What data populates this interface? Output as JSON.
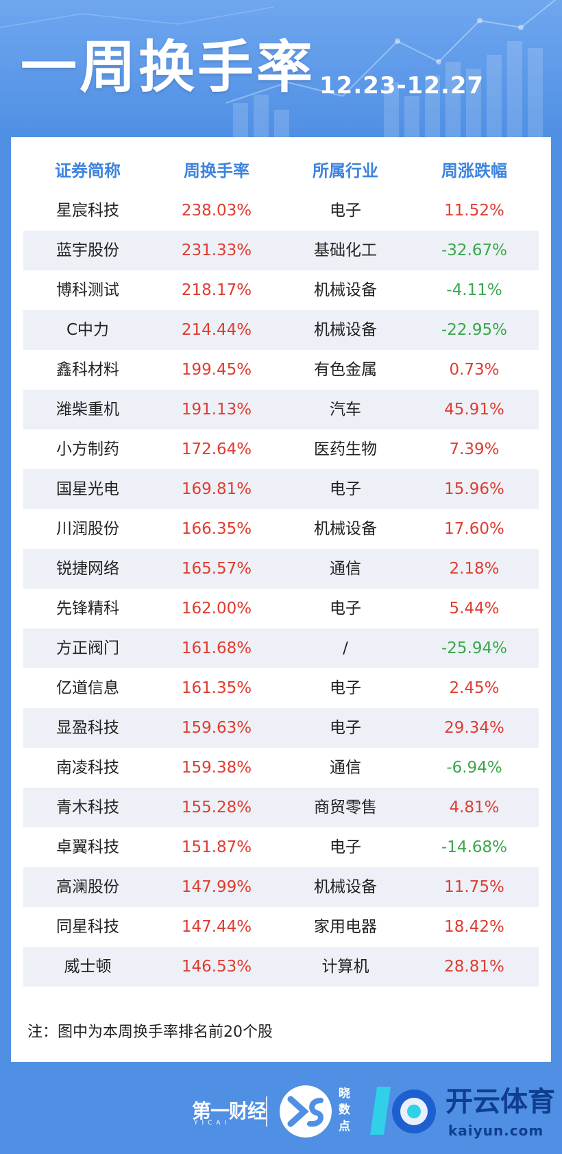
{
  "header": {
    "title": "一周换手率",
    "date_range": "12.23-12.27"
  },
  "table": {
    "columns": [
      "证券简称",
      "周换手率",
      "所属行业",
      "周涨跌幅"
    ],
    "rows": [
      {
        "name": "星宸科技",
        "rate": "238.03%",
        "industry": "电子",
        "change": "11.52%",
        "dir": "up"
      },
      {
        "name": "蓝宇股份",
        "rate": "231.33%",
        "industry": "基础化工",
        "change": "-32.67%",
        "dir": "down"
      },
      {
        "name": "博科测试",
        "rate": "218.17%",
        "industry": "机械设备",
        "change": "-4.11%",
        "dir": "down"
      },
      {
        "name": "C中力",
        "rate": "214.44%",
        "industry": "机械设备",
        "change": "-22.95%",
        "dir": "down"
      },
      {
        "name": "鑫科材料",
        "rate": "199.45%",
        "industry": "有色金属",
        "change": "0.73%",
        "dir": "up"
      },
      {
        "name": "潍柴重机",
        "rate": "191.13%",
        "industry": "汽车",
        "change": "45.91%",
        "dir": "up"
      },
      {
        "name": "小方制药",
        "rate": "172.64%",
        "industry": "医药生物",
        "change": "7.39%",
        "dir": "up"
      },
      {
        "name": "国星光电",
        "rate": "169.81%",
        "industry": "电子",
        "change": "15.96%",
        "dir": "up"
      },
      {
        "name": "川润股份",
        "rate": "166.35%",
        "industry": "机械设备",
        "change": "17.60%",
        "dir": "up"
      },
      {
        "name": "锐捷网络",
        "rate": "165.57%",
        "industry": "通信",
        "change": "2.18%",
        "dir": "up"
      },
      {
        "name": "先锋精科",
        "rate": "162.00%",
        "industry": "电子",
        "change": "5.44%",
        "dir": "up"
      },
      {
        "name": "方正阀门",
        "rate": "161.68%",
        "industry": "/",
        "change": "-25.94%",
        "dir": "down"
      },
      {
        "name": "亿道信息",
        "rate": "161.35%",
        "industry": "电子",
        "change": "2.45%",
        "dir": "up"
      },
      {
        "name": "显盈科技",
        "rate": "159.63%",
        "industry": "电子",
        "change": "29.34%",
        "dir": "up"
      },
      {
        "name": "南凌科技",
        "rate": "159.38%",
        "industry": "通信",
        "change": "-6.94%",
        "dir": "down"
      },
      {
        "name": "青木科技",
        "rate": "155.28%",
        "industry": "商贸零售",
        "change": "4.81%",
        "dir": "up"
      },
      {
        "name": "卓翼科技",
        "rate": "151.87%",
        "industry": "电子",
        "change": "-14.68%",
        "dir": "down"
      },
      {
        "name": "高澜股份",
        "rate": "147.99%",
        "industry": "机械设备",
        "change": "11.75%",
        "dir": "up"
      },
      {
        "name": "同星科技",
        "rate": "147.44%",
        "industry": "家用电器",
        "change": "18.42%",
        "dir": "up"
      },
      {
        "name": "威士顿",
        "rate": "146.53%",
        "industry": "计算机",
        "change": "28.81%",
        "dir": "up"
      }
    ]
  },
  "note": "注：图中为本周换手率排名前20个股",
  "footer": {
    "yicai_logo": "第一财经",
    "yicai_sub": "YICAI",
    "xiaoshudian": "晓数点",
    "brand_name": "开云体育",
    "brand_domain": "kaiyun.com"
  },
  "colors": {
    "header_blue": "#4f8fe4",
    "column_header": "#3d83de",
    "positive": "#e03c31",
    "negative": "#3aa64a",
    "row_alt": "#edf1f7"
  }
}
